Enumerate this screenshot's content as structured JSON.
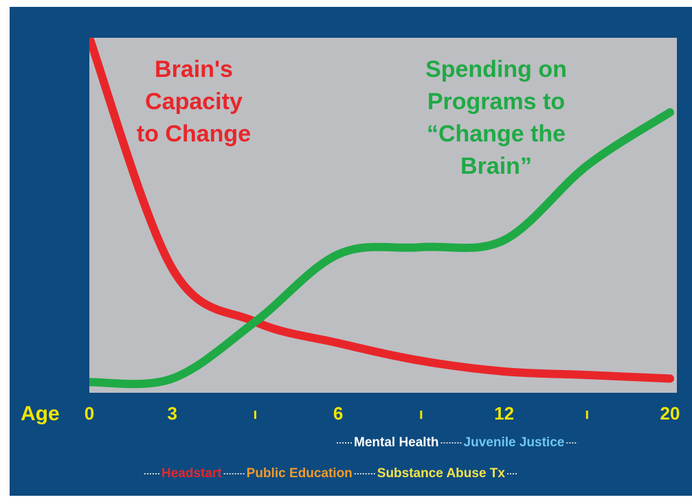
{
  "chart_data": {
    "type": "line",
    "x_label": "Age",
    "categories": [
      "0",
      "3",
      null,
      "6",
      null,
      "12",
      null,
      "20"
    ],
    "ylim": [
      0,
      100
    ],
    "series": [
      {
        "name": "Brain's Capacity to Change",
        "color": "#e8262a",
        "values": [
          100,
          35,
          20,
          14,
          9,
          6,
          5,
          4
        ],
        "annotation": [
          "Brain's",
          "Capacity",
          "to Change"
        ]
      },
      {
        "name": "Spending on Programs to “Change the Brain”",
        "color": "#1faa45",
        "values": [
          3,
          4,
          20,
          39,
          41,
          43,
          64,
          79
        ],
        "annotation": [
          "Spending on",
          "Programs to",
          "“Change the",
          "Brain”"
        ]
      }
    ],
    "programs": [
      [
        {
          "name": "Mental Health",
          "color": "#ffffff"
        },
        {
          "name": "Juvenile Justice",
          "color": "#6ec6f0"
        }
      ],
      [
        {
          "name": "Headstart",
          "color": "#e8262a"
        },
        {
          "name": "Public Education",
          "color": "#f39a2a"
        },
        {
          "name": "Substance Abuse Tx",
          "color": "#f5e24a"
        }
      ]
    ]
  }
}
